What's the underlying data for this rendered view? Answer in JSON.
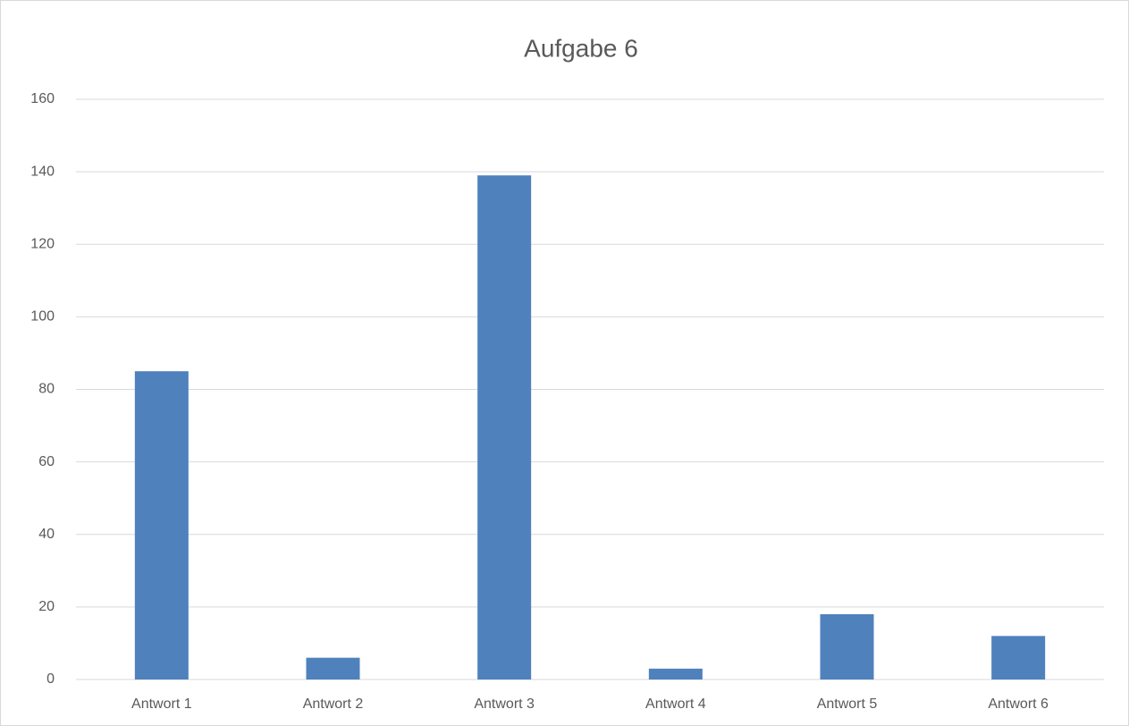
{
  "chart_data": {
    "type": "bar",
    "title": "Aufgabe 6",
    "categories": [
      "Antwort 1",
      "Antwort 2",
      "Antwort 3",
      "Antwort 4",
      "Antwort 5",
      "Antwort 6"
    ],
    "values": [
      85,
      6,
      139,
      3,
      18,
      12
    ],
    "color": "#4f81bd",
    "ylim": [
      0,
      160
    ],
    "yticks": [
      0,
      20,
      40,
      60,
      80,
      100,
      120,
      140,
      160
    ],
    "grid": true
  }
}
